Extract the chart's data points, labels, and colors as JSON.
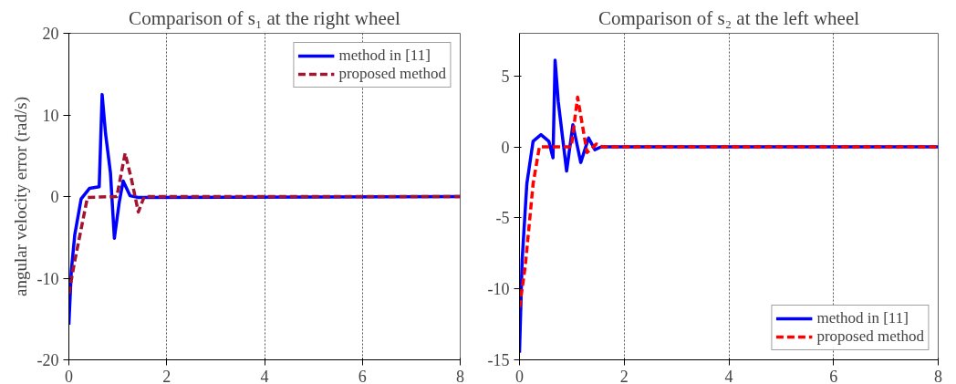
{
  "chart_data": [
    {
      "type": "line",
      "title": "Comparison of s₁ at the right wheel",
      "ylabel": "angular velocity error (rad/s)",
      "xlim": [
        0,
        8
      ],
      "xticks": [
        0,
        2,
        4,
        6,
        8
      ],
      "ylim": [
        -20,
        20
      ],
      "yticks": [
        -20,
        -10,
        0,
        10,
        20
      ],
      "grid": "x",
      "legend": "top right",
      "series": [
        {
          "name": "method in [11]",
          "color": "#0000ff",
          "line_style": "solid",
          "x": [
            0,
            0.05,
            0.12,
            0.25,
            0.42,
            0.62,
            0.68,
            0.75,
            0.85,
            0.93,
            1.03,
            1.11,
            1.25,
            1.41,
            8
          ],
          "values": [
            -15.7,
            -9.1,
            -4.7,
            -0.3,
            1.0,
            1.2,
            12.5,
            7.7,
            2.9,
            -5.1,
            -0.7,
            1.9,
            0.1,
            -0.1,
            0
          ]
        },
        {
          "name": "proposed method",
          "color": "#a2142f",
          "line_style": "dashed",
          "x": [
            0,
            0.12,
            0.28,
            0.38,
            0.98,
            1.15,
            1.28,
            1.42,
            1.54,
            8
          ],
          "values": [
            -11.9,
            -7.9,
            -3.1,
            -0.1,
            0,
            5.3,
            2.1,
            -1.9,
            0,
            0
          ]
        }
      ]
    },
    {
      "type": "line",
      "title": "Comparison of s₂ at the left wheel",
      "xlim": [
        0,
        8
      ],
      "xticks": [
        0,
        2,
        4,
        6,
        8
      ],
      "ylim": [
        -15,
        8
      ],
      "yticks": [
        -15,
        -10,
        -5,
        0,
        5
      ],
      "grid": "x",
      "legend": "bottom right",
      "series": [
        {
          "name": "method in [11]",
          "color": "#0000ff",
          "line_style": "solid",
          "x": [
            0,
            0.05,
            0.14,
            0.26,
            0.41,
            0.56,
            0.64,
            0.68,
            0.74,
            0.9,
            1.02,
            1.17,
            1.32,
            1.44,
            1.56,
            8
          ],
          "values": [
            -14.5,
            -8.0,
            -2.6,
            0.4,
            0.86,
            0.4,
            -0.77,
            6.1,
            3.2,
            -1.7,
            1.56,
            -1.1,
            0.63,
            -0.2,
            0,
            0
          ]
        },
        {
          "name": "proposed method",
          "color": "#ff0000",
          "line_style": "dashed",
          "x": [
            0,
            0.11,
            0.26,
            0.38,
            0.99,
            1.11,
            1.2,
            1.29,
            1.47,
            1.59,
            8
          ],
          "values": [
            -11.3,
            -8.4,
            -2.6,
            0,
            0,
            3.5,
            1.56,
            -0.4,
            0.2,
            0,
            0
          ]
        }
      ]
    }
  ]
}
